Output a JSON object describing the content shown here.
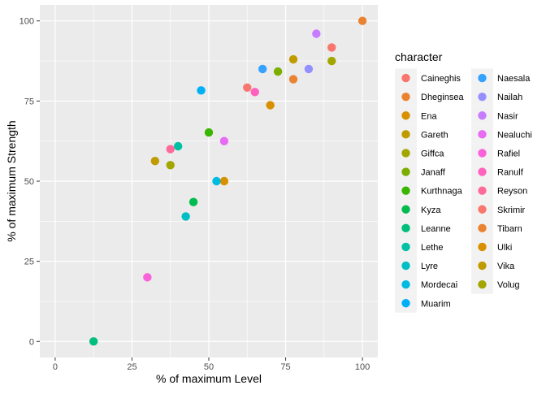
{
  "chart_data": {
    "type": "scatter",
    "xlabel": "% of maximum Level",
    "ylabel": "% of maximum Strength",
    "xlim": [
      -5,
      105
    ],
    "ylim": [
      -5,
      105
    ],
    "xticks": [
      0,
      25,
      50,
      75,
      100
    ],
    "yticks": [
      0,
      25,
      50,
      75,
      100
    ],
    "grid": true,
    "legend_title": "character",
    "legend_position": "right",
    "series": [
      {
        "name": "Caineghis",
        "color": "#F8766D",
        "x": 90,
        "y": 91.7
      },
      {
        "name": "Dheginsea",
        "color": "#EA8331",
        "x": 100,
        "y": 100
      },
      {
        "name": "Ena",
        "color": "#D89000",
        "x": 55,
        "y": 50
      },
      {
        "name": "Gareth",
        "color": "#C09B00",
        "x": 77.5,
        "y": 88
      },
      {
        "name": "Giffca",
        "color": "#A3A500",
        "x": 90,
        "y": 87.5
      },
      {
        "name": "Janaff",
        "color": "#7CAE00",
        "x": 72.5,
        "y": 84.2
      },
      {
        "name": "Kurthnaga",
        "color": "#39B600",
        "x": 50,
        "y": 65.2
      },
      {
        "name": "Kyza",
        "color": "#00BB4E",
        "x": 45,
        "y": 43.5
      },
      {
        "name": "Leanne",
        "color": "#00BF7D",
        "x": 12.5,
        "y": 0
      },
      {
        "name": "Lethe",
        "color": "#00C1A3",
        "x": 40,
        "y": 60.9
      },
      {
        "name": "Lyre",
        "color": "#00BFC4",
        "x": 42.5,
        "y": 39
      },
      {
        "name": "Mordecai",
        "color": "#00BAE0",
        "x": 52.5,
        "y": 50
      },
      {
        "name": "Muarim",
        "color": "#00B0F6",
        "x": 47.5,
        "y": 78.3
      },
      {
        "name": "Naesala",
        "color": "#35A2FF",
        "x": 67.5,
        "y": 85
      },
      {
        "name": "Nailah",
        "color": "#9590FF",
        "x": 82.5,
        "y": 85
      },
      {
        "name": "Nasir",
        "color": "#C77CFF",
        "x": 85,
        "y": 96
      },
      {
        "name": "Nealuchi",
        "color": "#E76BF3",
        "x": 55,
        "y": 62.5
      },
      {
        "name": "Rafiel",
        "color": "#FA62DB",
        "x": 30,
        "y": 20
      },
      {
        "name": "Ranulf",
        "color": "#FF62BC",
        "x": 65,
        "y": 77.8
      },
      {
        "name": "Reyson",
        "color": "#FF6A98",
        "x": 37.5,
        "y": 60
      },
      {
        "name": "Skrimir",
        "color": "#F8766D",
        "x": 62.5,
        "y": 79.2
      },
      {
        "name": "Tibarn",
        "color": "#EA8331",
        "x": 77.5,
        "y": 81.8
      },
      {
        "name": "Ulki",
        "color": "#D89000",
        "x": 70,
        "y": 73.7
      },
      {
        "name": "Vika",
        "color": "#C09B00",
        "x": 32.5,
        "y": 56.3
      },
      {
        "name": "Volug",
        "color": "#A3A500",
        "x": 37.5,
        "y": 55
      }
    ]
  }
}
